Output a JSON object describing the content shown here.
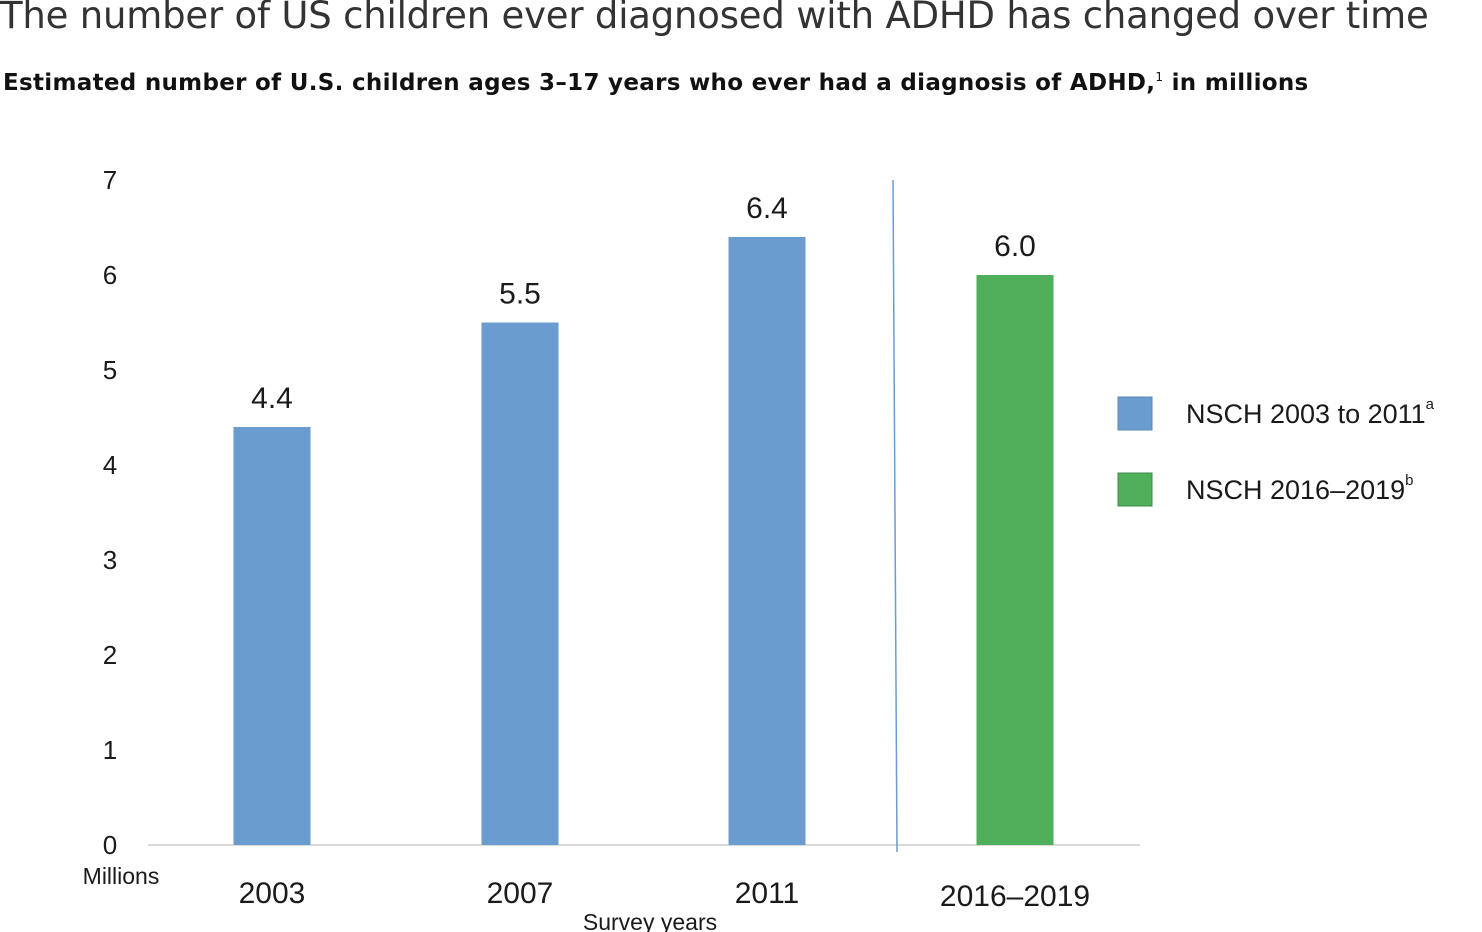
{
  "header": {
    "title": "The number of US children ever diagnosed with ADHD has changed over time",
    "subtitle": "Estimated number of U.S. children ages 3–17 years who ever had a diagnosis of ADHD,",
    "subtitle_footnote": "1",
    "subtitle_suffix": " in millions"
  },
  "chart_data": {
    "type": "bar",
    "categories": [
      "2003",
      "2007",
      "2011",
      "2016–2019"
    ],
    "values": [
      4.4,
      5.5,
      6.4,
      6.0
    ],
    "value_labels": [
      "4.4",
      "5.5",
      "6.4",
      "6.0"
    ],
    "bar_series": [
      0,
      0,
      0,
      1
    ],
    "series": [
      {
        "name": "NSCH 2003 to 2011",
        "footnote": "a",
        "color": "#6a9cd0"
      },
      {
        "name": "NSCH 2016–2019",
        "footnote": "b",
        "color": "#4faf5b"
      }
    ],
    "yunit_label": "Millions",
    "xlabel": "Survey years",
    "ylim": [
      0,
      7
    ],
    "yticks": [
      "0",
      "1",
      "2",
      "3",
      "4",
      "5",
      "6",
      "7"
    ],
    "grid": false,
    "legend_position": "right",
    "divider_after_category": "2011"
  }
}
